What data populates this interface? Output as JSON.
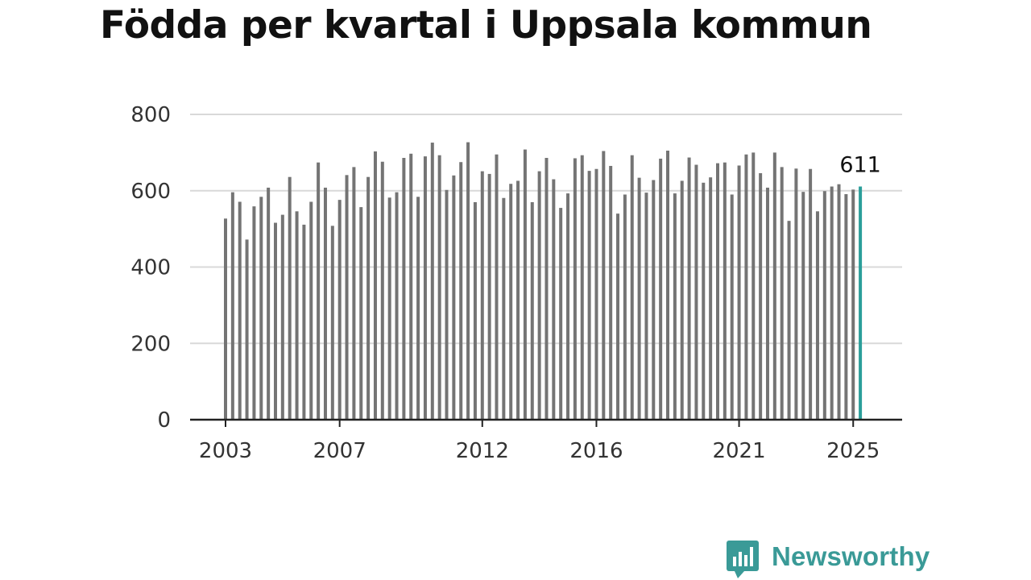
{
  "title": "Födda per kvartal i Uppsala kommun",
  "brand": {
    "name": "Newsworthy",
    "icon": "newsworthy-logo-icon",
    "color": "#3a9a97"
  },
  "chart_data": {
    "type": "bar",
    "title": "Födda per kvartal i Uppsala kommun",
    "xlabel": "",
    "ylabel": "",
    "ylim": [
      0,
      800
    ],
    "yticks": [
      0,
      200,
      400,
      600,
      800
    ],
    "grid": true,
    "x_tick_labels": [
      {
        "label": "2003",
        "index": 0
      },
      {
        "label": "2007",
        "index": 16
      },
      {
        "label": "2012",
        "index": 36
      },
      {
        "label": "2016",
        "index": 52
      },
      {
        "label": "2021",
        "index": 72
      },
      {
        "label": "2025",
        "index": 88
      }
    ],
    "highlight_index": 89,
    "highlight_label": "611",
    "colors": {
      "bar": "#747474",
      "highlight": "#2b9e9a",
      "grid": "#d9d9d9",
      "axis": "#222222",
      "tick_text": "#333333"
    },
    "series": [
      {
        "values": [
          527,
          596,
          571,
          472,
          559,
          584,
          608,
          516,
          537,
          636,
          546,
          511,
          571,
          674,
          608,
          508,
          576,
          641,
          662,
          557,
          636,
          703,
          676,
          582,
          596,
          686,
          697,
          584,
          690,
          726,
          693,
          602,
          640,
          675,
          727,
          570,
          651,
          644,
          695,
          581,
          618,
          626,
          708,
          570,
          651,
          686,
          630,
          555,
          593,
          685,
          693,
          652,
          657,
          704,
          665,
          540,
          590,
          693,
          634,
          595,
          628,
          684,
          705,
          593,
          626,
          687,
          668,
          621,
          635,
          672,
          674,
          590,
          666,
          695,
          700,
          646,
          608,
          700,
          662,
          521,
          658,
          597,
          657,
          546,
          599,
          611,
          617,
          591,
          603,
          611
        ]
      }
    ]
  }
}
